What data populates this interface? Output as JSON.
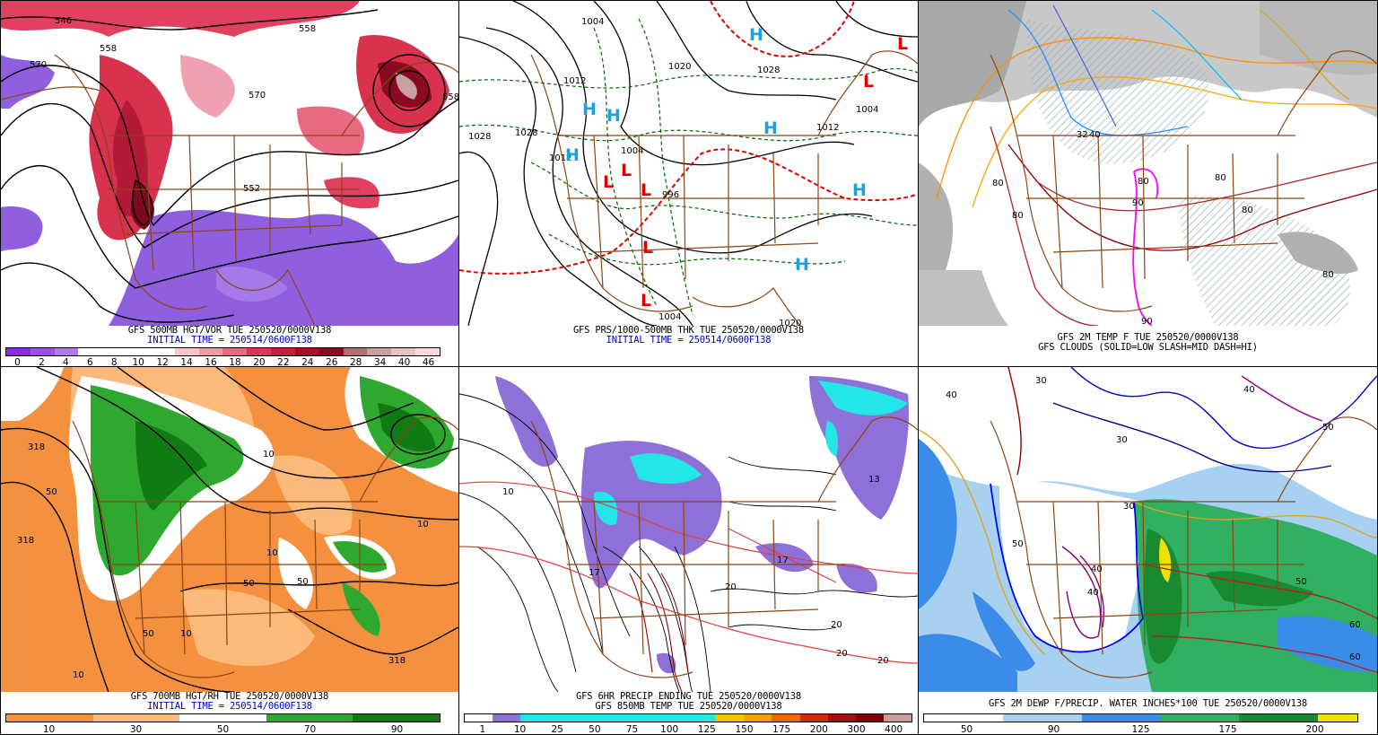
{
  "panels": [
    {
      "id": "p1",
      "caption_line1": "GFS 500MB HGT/VOR TUE 250520/0000V138",
      "caption_line2": "INITIAL TIME = 250514/0600F138",
      "colorbar_colors": [
        "#8a2be2",
        "#9a50e8",
        "#b07ae8",
        "#ffffff",
        "#ffffff",
        "#ffffff",
        "#ffffff",
        "#f7c6cf",
        "#f09aa8",
        "#e86a80",
        "#d9385a",
        "#c4203c",
        "#a8102a",
        "#8a0a20",
        "#b07070",
        "#c8a0a0",
        "#e8c0c8",
        "#f7d9de"
      ],
      "colorbar_ticks": [
        "0",
        "2",
        "4",
        "6",
        "8",
        "10",
        "12",
        "14",
        "16",
        "18",
        "20",
        "22",
        "24",
        "26",
        "28",
        "34",
        "40",
        "46"
      ],
      "map_labels": [
        "546",
        "558",
        "570",
        "570",
        "558",
        "552",
        "558"
      ]
    },
    {
      "id": "p2",
      "caption_line1": "GFS PRS/1000-500MB THK TUE 250520/0000V138",
      "caption_line2": "INITIAL TIME = 250514/0600F138",
      "map_labels": [
        "1004",
        "1020",
        "1028",
        "1028",
        "1028",
        "1012",
        "1004",
        "1004",
        "1012",
        "996",
        "1004",
        "1012",
        "1020"
      ],
      "highs": [
        "H",
        "H",
        "H",
        "H",
        "H",
        "H",
        "H"
      ],
      "lows": [
        "L",
        "L",
        "L",
        "L",
        "L",
        "L",
        "L"
      ]
    },
    {
      "id": "p3",
      "caption_line1": "GFS 2M TEMP F TUE 250520/0000V138",
      "caption_line2": "GFS CLOUDS (SOLID=LOW SLASH=MID DASH=HI)",
      "map_labels": [
        "80",
        "80",
        "80",
        "80",
        "80",
        "80",
        "90",
        "90",
        "32",
        "40"
      ]
    },
    {
      "id": "p4",
      "caption_line1": "GFS 700MB HGT/RH TUE 250520/0000V138",
      "caption_line2": "INITIAL TIME = 250514/0600F138",
      "colorbar_colors": [
        "#f5913e",
        "#f5913e",
        "#fbb97a",
        "#fbb97a",
        "#ffffff",
        "#ffffff",
        "#2fa82f",
        "#2fa82f",
        "#127a12",
        "#127a12"
      ],
      "colorbar_ticks": [
        "10",
        "30",
        "50",
        "70",
        "90"
      ],
      "map_labels": [
        "50",
        "10",
        "50",
        "10",
        "50",
        "318",
        "10",
        "318",
        "50",
        "10",
        "318",
        "10"
      ]
    },
    {
      "id": "p5",
      "caption_line1": "GFS 6HR PRECIP ENDING TUE 250520/0000V138",
      "caption_line2": "GFS 850MB TEMP TUE 250520/0000V138",
      "colorbar_colors": [
        "#ffffff",
        "#8f6fd8",
        "#25e6e6",
        "#25e6e6",
        "#25e6e6",
        "#25e6e6",
        "#25e6e6",
        "#25e6e6",
        "#25e6e6",
        "#f5c400",
        "#f5a000",
        "#e86a00",
        "#d03000",
        "#a01010",
        "#800000",
        "#c89a9a"
      ],
      "colorbar_ticks": [
        "1",
        "10",
        "25",
        "50",
        "75",
        "100",
        "125",
        "150",
        "175",
        "200",
        "300",
        "400"
      ],
      "map_labels": [
        "10",
        "13",
        "17",
        "17",
        "20",
        "20",
        "20",
        "20"
      ]
    },
    {
      "id": "p6",
      "caption_line1": "GFS 2M DEWP F/PRECIP. WATER INCHES*100 TUE 250520/0000V138",
      "caption_line2": "",
      "colorbar_colors": [
        "#ffffff",
        "#ffffff",
        "#a8d0f0",
        "#a8d0f0",
        "#3a8ce8",
        "#3a8ce8",
        "#30b060",
        "#30b060",
        "#1a8a30",
        "#1a8a30",
        "#f0e000"
      ],
      "colorbar_ticks": [
        "50",
        "90",
        "125",
        "175",
        "200"
      ],
      "map_labels": [
        "30",
        "30",
        "30",
        "40",
        "40",
        "40",
        "50",
        "50",
        "50",
        "60",
        "60",
        "40"
      ]
    }
  ]
}
